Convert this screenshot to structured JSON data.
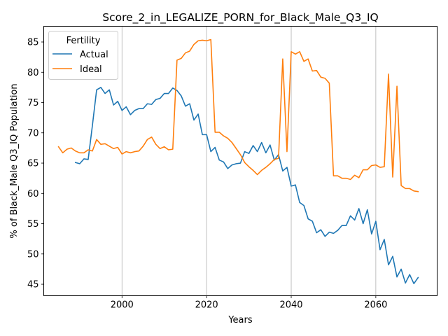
{
  "chart_data": {
    "type": "line",
    "title": "Score_2_in_LEGALIZE_PORN_for_Black_Male_Q3_IQ",
    "xlabel": "Years",
    "ylabel": "% of Black_Male Q3_IQ Population",
    "xlim": [
      1981.5,
      2074.5
    ],
    "ylim": [
      43.1,
      87.6
    ],
    "xticks": [
      2000,
      2020,
      2040,
      2060
    ],
    "yticks": [
      45,
      50,
      55,
      60,
      65,
      70,
      75,
      80,
      85
    ],
    "grid": "x-only",
    "legend": {
      "title": "Fertility",
      "placement": "top-left"
    },
    "series": [
      {
        "name": "Actual",
        "color": "#1f77b4",
        "x": [
          1989,
          1990,
          1991,
          1992,
          1993,
          1994,
          1995,
          1996,
          1997,
          1998,
          1999,
          2000,
          2001,
          2002,
          2003,
          2004,
          2005,
          2006,
          2007,
          2008,
          2009,
          2010,
          2011,
          2012,
          2013,
          2014,
          2015,
          2016,
          2017,
          2018,
          2019,
          2020,
          2021,
          2022,
          2023,
          2024,
          2025,
          2026,
          2027,
          2028,
          2029,
          2030,
          2031,
          2032,
          2033,
          2034,
          2035,
          2036,
          2037,
          2038,
          2039,
          2040,
          2041,
          2042,
          2043,
          2044,
          2045,
          2046,
          2047,
          2048,
          2049,
          2050,
          2051,
          2052,
          2053,
          2054,
          2055,
          2056,
          2057,
          2058,
          2059,
          2060,
          2061,
          2062,
          2063,
          2064,
          2065,
          2066,
          2067,
          2068,
          2069,
          2070
        ],
        "values": [
          65.1,
          64.9,
          65.7,
          65.6,
          71.2,
          77.1,
          77.5,
          76.5,
          77.1,
          74.6,
          75.2,
          73.7,
          74.3,
          73.0,
          73.7,
          74.0,
          74.0,
          74.8,
          74.7,
          75.5,
          75.7,
          76.5,
          76.5,
          77.4,
          77.0,
          76.1,
          74.4,
          74.8,
          72.1,
          73.1,
          69.7,
          69.7,
          66.9,
          67.6,
          65.5,
          65.2,
          64.1,
          64.7,
          64.9,
          65.0,
          66.9,
          66.6,
          67.9,
          66.9,
          68.4,
          66.7,
          68.0,
          65.5,
          66.4,
          63.7,
          64.3,
          61.2,
          61.4,
          58.5,
          58.0,
          55.8,
          55.4,
          53.5,
          54.0,
          52.9,
          53.6,
          53.4,
          53.9,
          54.7,
          54.7,
          56.3,
          55.6,
          57.5,
          55.0,
          57.3,
          53.3,
          55.4,
          50.7,
          52.4,
          48.2,
          49.6,
          46.2,
          47.5,
          45.2,
          46.6,
          45.1,
          46.1
        ]
      },
      {
        "name": "Ideal",
        "color": "#ff7f0e",
        "x": [
          1985,
          1986,
          1987,
          1988,
          1989,
          1990,
          1991,
          1992,
          1993,
          1994,
          1995,
          1996,
          1997,
          1998,
          1999,
          2000,
          2001,
          2002,
          2003,
          2004,
          2005,
          2006,
          2007,
          2008,
          2009,
          2010,
          2011,
          2012,
          2013,
          2014,
          2015,
          2016,
          2017,
          2018,
          2019,
          2020,
          2021,
          2022,
          2023,
          2024,
          2025,
          2026,
          2027,
          2028,
          2029,
          2030,
          2031,
          2032,
          2033,
          2034,
          2035,
          2036,
          2037,
          2038,
          2039,
          2040,
          2041,
          2042,
          2043,
          2044,
          2045,
          2046,
          2047,
          2048,
          2049,
          2050,
          2051,
          2052,
          2053,
          2054,
          2055,
          2056,
          2057,
          2058,
          2059,
          2060,
          2061,
          2062,
          2063,
          2064,
          2065,
          2066,
          2067,
          2068,
          2069,
          2070
        ],
        "values": [
          67.7,
          66.7,
          67.3,
          67.5,
          67.0,
          66.7,
          66.7,
          67.2,
          67.0,
          68.9,
          68.1,
          68.2,
          67.8,
          67.4,
          67.6,
          66.5,
          66.9,
          66.7,
          66.9,
          67.0,
          67.8,
          68.9,
          69.3,
          68.1,
          67.4,
          67.7,
          67.2,
          67.3,
          82.0,
          82.3,
          83.2,
          83.5,
          84.6,
          85.2,
          85.3,
          85.2,
          85.4,
          70.1,
          70.1,
          69.5,
          69.1,
          68.4,
          67.4,
          66.4,
          65.1,
          64.4,
          63.8,
          63.1,
          63.8,
          64.3,
          64.9,
          65.6,
          65.8,
          82.2,
          66.9,
          83.4,
          83.0,
          83.4,
          81.8,
          82.2,
          80.2,
          80.3,
          79.2,
          79.0,
          78.2,
          62.9,
          62.9,
          62.5,
          62.5,
          62.3,
          63.0,
          62.6,
          63.9,
          63.9,
          64.6,
          64.7,
          64.3,
          64.4,
          79.7,
          62.7,
          77.7,
          61.3,
          60.8,
          60.8,
          60.4,
          60.3
        ]
      }
    ]
  }
}
